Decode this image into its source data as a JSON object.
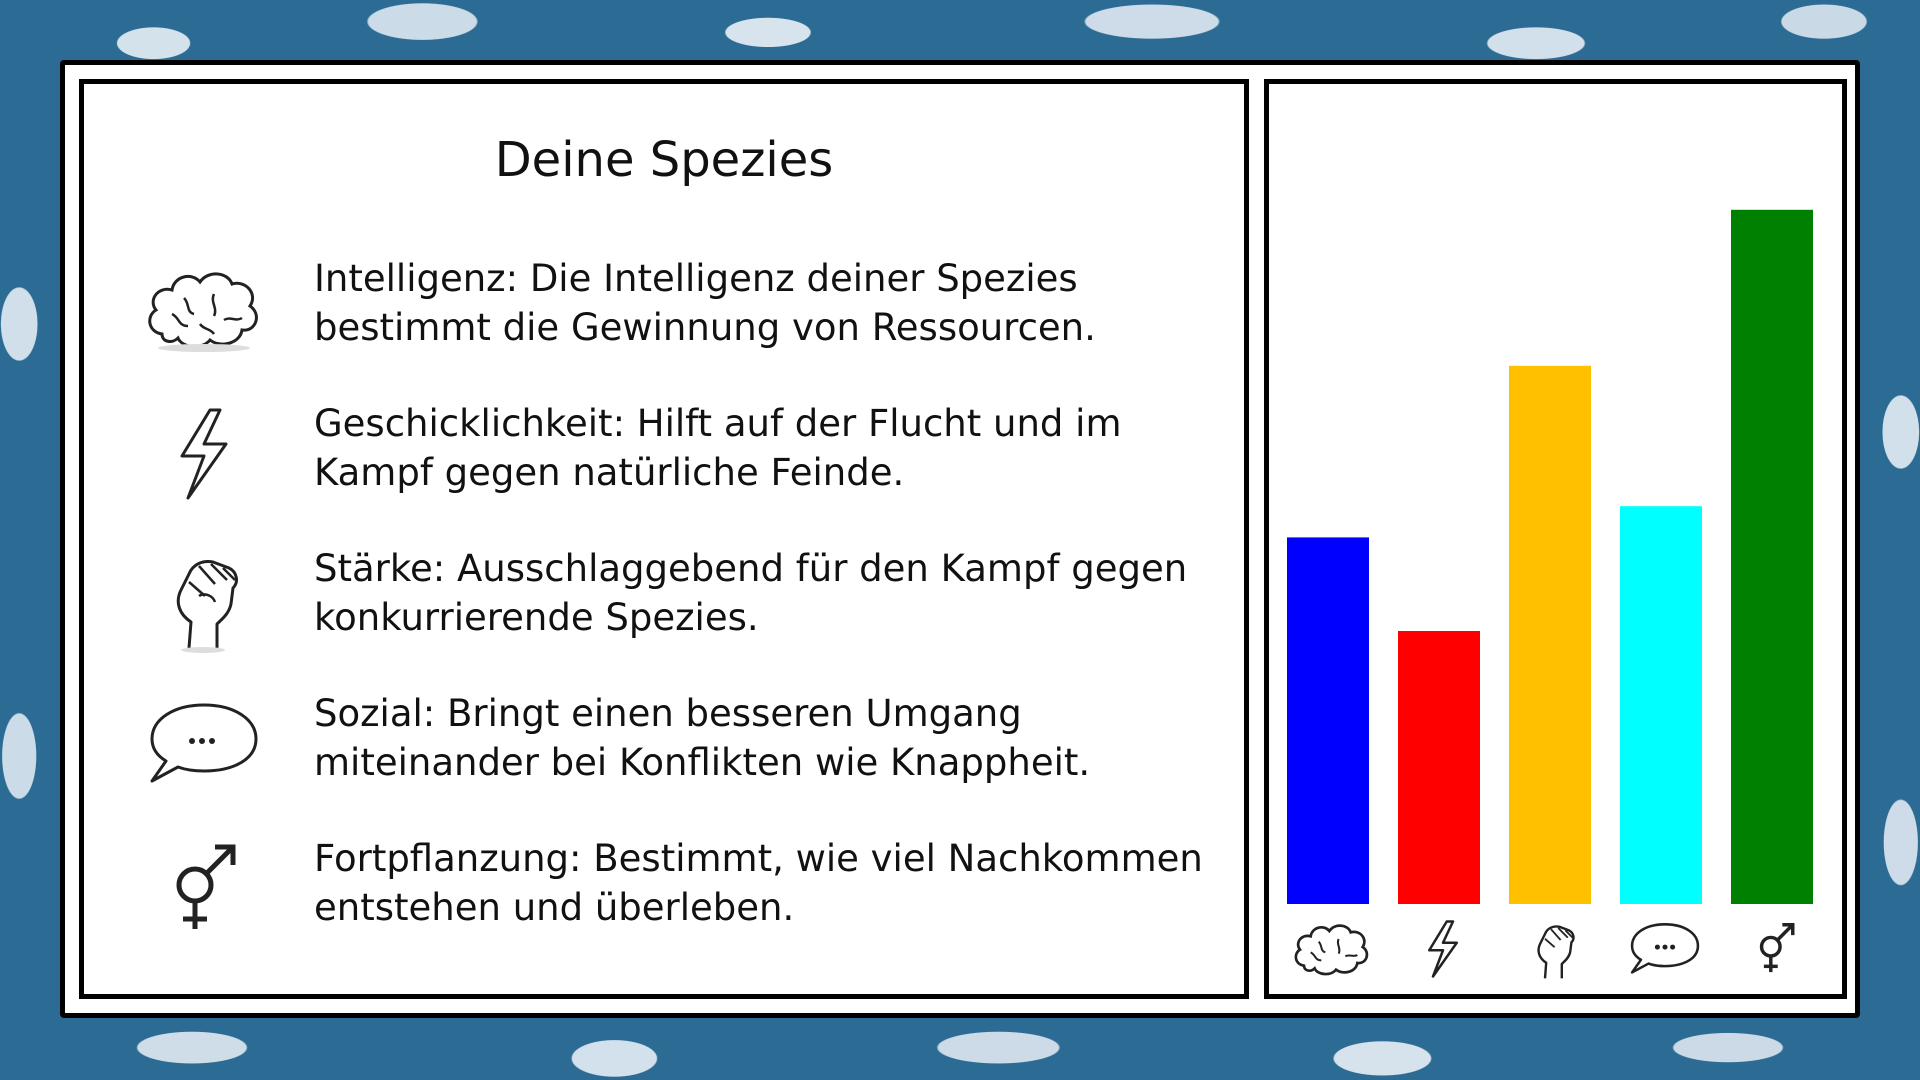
{
  "title": "Deine Spezies",
  "attributes": [
    {
      "icon": "brain-icon",
      "text": "Intelligenz: Die Intelligenz deiner Spezies bestimmt die Gewinnung von Ressourcen."
    },
    {
      "icon": "lightning-icon",
      "text": "Geschicklichkeit: Hilft auf der Flucht und im Kampf gegen natürliche Feinde."
    },
    {
      "icon": "fist-icon",
      "text": "Stärke: Ausschlaggebend für den Kampf gegen konkurrierende Spezies."
    },
    {
      "icon": "speech-bubble-icon",
      "text": "Sozial: Bringt einen besseren Umgang miteinander bei Konflikten wie Knappheit."
    },
    {
      "icon": "gender-symbol-icon",
      "text": "Fortpflanzung: Bestimmt, wie viel Nachkommen entstehen und überleben."
    }
  ],
  "chart_data": {
    "type": "bar",
    "categories": [
      "Intelligenz",
      "Geschicklichkeit",
      "Stärke",
      "Sozial",
      "Fortpflanzung"
    ],
    "category_icons": [
      "brain-icon",
      "lightning-icon",
      "fist-icon",
      "speech-bubble-icon",
      "gender-symbol-icon"
    ],
    "values": [
      47,
      35,
      69,
      51,
      89
    ],
    "colors": [
      "#0000ff",
      "#ff0000",
      "#ffc000",
      "#00ffff",
      "#008000"
    ],
    "ylim": [
      0,
      100
    ],
    "title": "",
    "xlabel": "",
    "ylabel": "",
    "grid": false,
    "legend": "none"
  }
}
